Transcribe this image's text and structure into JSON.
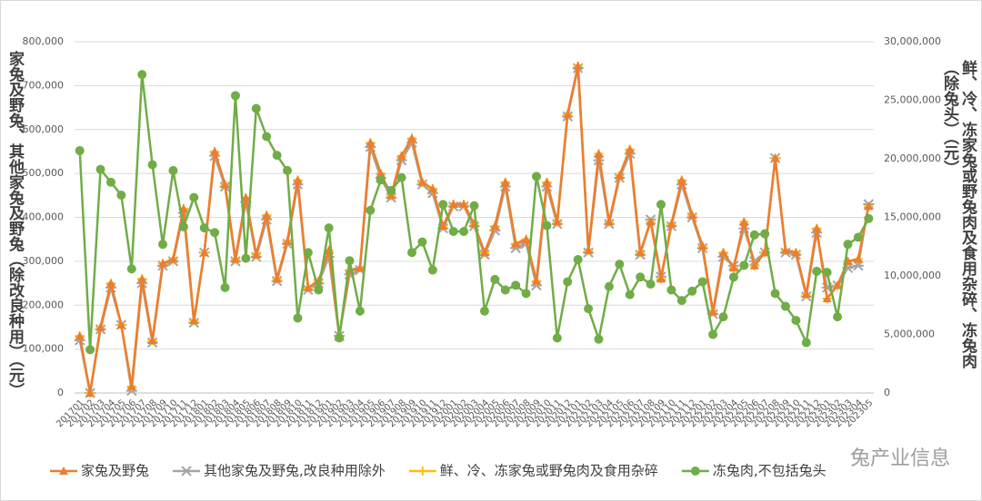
{
  "chart_data": {
    "type": "line",
    "y_title": "家兔及野兔、其他家兔及野兔（除改良种用）（元）",
    "y2_title": "鲜、冷、冻家兔或野兔肉及食用杂碎、冻兔肉（除兔头）（元）",
    "watermark": "兔产业信息",
    "grid": true,
    "legend": "bottom",
    "categories": [
      "201701",
      "201702",
      "201703",
      "201704",
      "201705",
      "201706",
      "201707",
      "201708",
      "201709",
      "201710",
      "201711",
      "201712",
      "201801",
      "201802",
      "201803",
      "201804",
      "201805",
      "201806",
      "201807",
      "201808",
      "201809",
      "201810",
      "201811",
      "201812",
      "201901",
      "201902",
      "201903",
      "201904",
      "201905",
      "201906",
      "201907",
      "201908",
      "201909",
      "201910",
      "201911",
      "201912",
      "202001",
      "202002",
      "202003",
      "202004",
      "202005",
      "202006",
      "202007",
      "202008",
      "202009",
      "202010",
      "202011",
      "202012",
      "202101",
      "202102",
      "202103",
      "202104",
      "202105",
      "202106",
      "202107",
      "202108",
      "202109",
      "202110",
      "202111",
      "202112",
      "202201",
      "202202",
      "202203",
      "202204",
      "202205",
      "202206",
      "202207",
      "202208",
      "202209",
      "202210",
      "202211",
      "202212",
      "202301",
      "202302",
      "202303",
      "202304",
      "202305"
    ],
    "ylim": [
      0,
      800000
    ],
    "yticks": [
      0,
      {
        "value": 100000,
        "label": "100,000"
      },
      {
        "value": 200000,
        "label": "200,000"
      },
      {
        "value": 300000,
        "label": "300,000"
      },
      {
        "value": 400000,
        "label": "400,000"
      },
      {
        "value": 500000,
        "label": "500,000"
      },
      {
        "value": 600000,
        "label": "600,000"
      },
      {
        "value": 700000,
        "label": "700,000"
      },
      {
        "value": 800000,
        "label": "800,000"
      }
    ],
    "y2lim": [
      0,
      30000000
    ],
    "y2ticks": [
      0,
      {
        "value": 5000000,
        "label": "5,000,000"
      },
      {
        "value": 10000000,
        "label": "10,000,000"
      },
      {
        "value": 15000000,
        "label": "15,000,000"
      },
      {
        "value": 20000000,
        "label": "20,000,000"
      },
      {
        "value": 25000000,
        "label": "25,000,000"
      },
      {
        "value": 30000000,
        "label": "30,000,000"
      }
    ],
    "series": [
      {
        "name": "家兔及野兔",
        "color": "#ed7d31",
        "marker": "triangle",
        "axis": "y",
        "values": [
          130000,
          0,
          150000,
          250000,
          155000,
          15000,
          260000,
          120000,
          295000,
          305000,
          420000,
          165000,
          320000,
          550000,
          475000,
          305000,
          445000,
          315000,
          405000,
          260000,
          345000,
          485000,
          240000,
          255000,
          325000,
          130000,
          280000,
          285000,
          570000,
          500000,
          450000,
          540000,
          580000,
          480000,
          465000,
          380000,
          430000,
          430000,
          385000,
          320000,
          380000,
          480000,
          340000,
          350000,
          255000,
          480000,
          390000,
          635000,
          745000,
          325000,
          545000,
          390000,
          495000,
          555000,
          320000,
          390000,
          260000,
          385000,
          485000,
          405000,
          335000,
          185000,
          320000,
          285000,
          390000,
          290000,
          320000,
          535000,
          325000,
          320000,
          225000,
          375000,
          215000,
          245000,
          300000,
          305000,
          425000
        ]
      },
      {
        "name": "其他家兔及野兔,改良种用除外",
        "color": "#a5a5a5",
        "marker": "star",
        "axis": "y",
        "values": [
          120000,
          0,
          145000,
          240000,
          155000,
          5000,
          250000,
          115000,
          290000,
          300000,
          410000,
          160000,
          320000,
          540000,
          470000,
          300000,
          435000,
          310000,
          395000,
          255000,
          340000,
          475000,
          235000,
          250000,
          310000,
          130000,
          270000,
          280000,
          560000,
          490000,
          445000,
          530000,
          570000,
          475000,
          455000,
          375000,
          425000,
          425000,
          380000,
          315000,
          370000,
          470000,
          330000,
          340000,
          245000,
          470000,
          385000,
          630000,
          740000,
          320000,
          530000,
          385000,
          490000,
          545000,
          315000,
          395000,
          265000,
          380000,
          475000,
          400000,
          330000,
          180000,
          310000,
          290000,
          375000,
          300000,
          320000,
          535000,
          320000,
          315000,
          220000,
          365000,
          240000,
          245000,
          285000,
          290000,
          430000
        ]
      },
      {
        "name": "鲜、冷、冻家兔或野兔肉及食用杂碎",
        "color": "#ffc000",
        "marker": "plus",
        "axis": "y",
        "values": [
          130000,
          0,
          150000,
          250000,
          155000,
          15000,
          260000,
          120000,
          295000,
          305000,
          420000,
          165000,
          320000,
          550000,
          475000,
          305000,
          445000,
          315000,
          405000,
          260000,
          345000,
          485000,
          240000,
          255000,
          325000,
          130000,
          280000,
          285000,
          570000,
          500000,
          450000,
          540000,
          580000,
          480000,
          465000,
          380000,
          430000,
          430000,
          385000,
          320000,
          380000,
          480000,
          340000,
          350000,
          255000,
          480000,
          390000,
          635000,
          745000,
          325000,
          545000,
          390000,
          495000,
          555000,
          320000,
          390000,
          260000,
          385000,
          485000,
          405000,
          335000,
          185000,
          320000,
          285000,
          390000,
          290000,
          320000,
          535000,
          325000,
          320000,
          225000,
          375000,
          215000,
          245000,
          300000,
          305000,
          425000
        ]
      },
      {
        "name": "冻兔肉,不包括兔头",
        "color": "#70ad47",
        "marker": "circle",
        "axis": "y2",
        "values": [
          20700000,
          3700000,
          19100000,
          18000000,
          16900000,
          10600000,
          27200000,
          19500000,
          12700000,
          19000000,
          14200000,
          16700000,
          14100000,
          13700000,
          9000000,
          25400000,
          11500000,
          24300000,
          21900000,
          20300000,
          19000000,
          6400000,
          12000000,
          8800000,
          14100000,
          4700000,
          11300000,
          7000000,
          15600000,
          18200000,
          17300000,
          18400000,
          12000000,
          12900000,
          10500000,
          16100000,
          13800000,
          13800000,
          16000000,
          7000000,
          9700000,
          8800000,
          9200000,
          8500000,
          18500000,
          14300000,
          4700000,
          9500000,
          11400000,
          7200000,
          4600000,
          9100000,
          11000000,
          8400000,
          9900000,
          9300000,
          16100000,
          8800000,
          7900000,
          8700000,
          9500000,
          5000000,
          6500000,
          9900000,
          10900000,
          13500000,
          13600000,
          8500000,
          7400000,
          6200000,
          4300000,
          10400000,
          10300000,
          6500000,
          12700000,
          13300000,
          14900000
        ]
      }
    ]
  }
}
